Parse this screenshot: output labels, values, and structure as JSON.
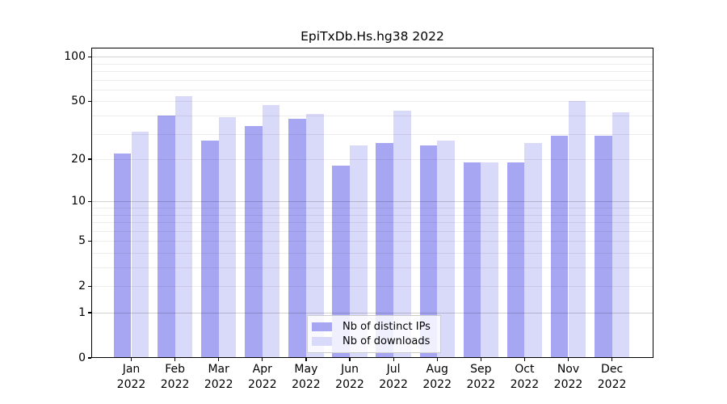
{
  "chart_data": {
    "type": "bar",
    "title": "EpiTxDb.Hs.hg38 2022",
    "categories": [
      "Jan",
      "Feb",
      "Mar",
      "Apr",
      "May",
      "Jun",
      "Jul",
      "Aug",
      "Sep",
      "Oct",
      "Nov",
      "Dec"
    ],
    "category_year": "2022",
    "series": [
      {
        "name": "Nb of distinct IPs",
        "color": "#a6a6f2",
        "values": [
          22,
          40,
          27,
          34,
          38,
          18,
          26,
          25,
          19,
          19,
          29,
          29
        ]
      },
      {
        "name": "Nb of downloads",
        "color": "#d9d9f9",
        "values": [
          31,
          54,
          39,
          47,
          41,
          25,
          43,
          27,
          19,
          26,
          50,
          42
        ]
      }
    ],
    "y_scale": "log1p",
    "ylim": [
      0,
      114
    ],
    "y_ticks_labeled": [
      0,
      1,
      2,
      5,
      10,
      20,
      50,
      100
    ],
    "y_major_gridlines": [
      1,
      10,
      100
    ],
    "y_minor_gridlines": [
      2,
      3,
      4,
      5,
      6,
      7,
      8,
      9,
      20,
      30,
      40,
      50,
      60,
      70,
      80,
      90
    ],
    "grid": "on",
    "legend_position": "lower center",
    "xlabel": "",
    "ylabel": ""
  },
  "colors": {
    "background": "#ffffff",
    "axis": "#000000",
    "bar_distinct_ips": "#a6a6f2",
    "bar_downloads": "#d9d9f9"
  }
}
